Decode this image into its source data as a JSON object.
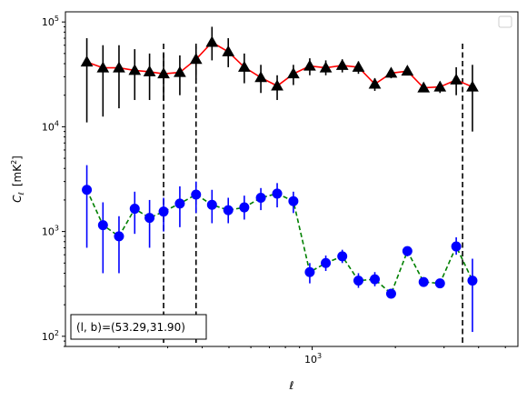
{
  "chart_data": {
    "type": "scatter",
    "xscale": "log",
    "yscale": "log",
    "xlim": [
      128,
      5550
    ],
    "ylim": [
      80,
      125000
    ],
    "x_tick_labels": [
      {
        "value": 1000,
        "label": "10^3"
      }
    ],
    "y_tick_labels": [
      {
        "value": 100,
        "label": "10^2"
      },
      {
        "value": 1000,
        "label": "10^3"
      },
      {
        "value": 10000,
        "label": "10^4"
      },
      {
        "value": 100000,
        "label": "10^5"
      }
    ],
    "xlabel": "ℓ",
    "ylabel_symbol": "C",
    "ylabel_subscript": "ℓ",
    "ylabel_unit_open": "[mK",
    "ylabel_unit_sup": "2",
    "ylabel_unit_close": "]",
    "annotation": "(l, b)=(53.29,31.90)",
    "legend": {
      "position": "top-right",
      "entries": []
    },
    "vlines": [
      {
        "x": 290,
        "style": "dashed"
      },
      {
        "x": 380,
        "style": "dashed"
      },
      {
        "x": 3500,
        "style": "dashed"
      }
    ],
    "series": [
      {
        "marker": "triangle",
        "marker_color": "#000000",
        "line_color": "#ff0000",
        "line_style": "solid",
        "points": [
          {
            "x": 153,
            "y": 41500,
            "ylo": 11000,
            "yhi": 70000
          },
          {
            "x": 175,
            "y": 36500,
            "ylo": 12500,
            "yhi": 60000
          },
          {
            "x": 200,
            "y": 36500,
            "ylo": 15000,
            "yhi": 60000
          },
          {
            "x": 228,
            "y": 34500,
            "ylo": 18000,
            "yhi": 55000
          },
          {
            "x": 258,
            "y": 33500,
            "ylo": 18000,
            "yhi": 50000
          },
          {
            "x": 290,
            "y": 32000,
            "ylo": 18000,
            "yhi": 50000
          },
          {
            "x": 332,
            "y": 33000,
            "ylo": 20000,
            "yhi": 48000
          },
          {
            "x": 380,
            "y": 44000,
            "ylo": 28000,
            "yhi": 59000
          },
          {
            "x": 434,
            "y": 64000,
            "ylo": 43000,
            "yhi": 90000
          },
          {
            "x": 497,
            "y": 52000,
            "ylo": 37000,
            "yhi": 70000
          },
          {
            "x": 568,
            "y": 37000,
            "ylo": 26000,
            "yhi": 50000
          },
          {
            "x": 652,
            "y": 29500,
            "ylo": 21000,
            "yhi": 39000
          },
          {
            "x": 747,
            "y": 24500,
            "ylo": 18000,
            "yhi": 31000
          },
          {
            "x": 855,
            "y": 32000,
            "ylo": 25000,
            "yhi": 39000
          },
          {
            "x": 980,
            "y": 38000,
            "ylo": 31000,
            "yhi": 45000
          },
          {
            "x": 1120,
            "y": 36500,
            "ylo": 31000,
            "yhi": 43000
          },
          {
            "x": 1285,
            "y": 38500,
            "ylo": 33000,
            "yhi": 44000
          },
          {
            "x": 1470,
            "y": 37000,
            "ylo": 32000,
            "yhi": 42000
          },
          {
            "x": 1685,
            "y": 25500,
            "ylo": 22000,
            "yhi": 29000
          },
          {
            "x": 1930,
            "y": 32500,
            "ylo": 29000,
            "yhi": 36000
          },
          {
            "x": 2210,
            "y": 34000,
            "ylo": 31000,
            "yhi": 37000
          },
          {
            "x": 2530,
            "y": 23500,
            "ylo": 21500,
            "yhi": 26000
          },
          {
            "x": 2900,
            "y": 24000,
            "ylo": 21000,
            "yhi": 27000
          },
          {
            "x": 3320,
            "y": 28000,
            "ylo": 20000,
            "yhi": 37000
          },
          {
            "x": 3800,
            "y": 24000,
            "ylo": 9000,
            "yhi": 39000
          }
        ]
      },
      {
        "marker": "circle",
        "marker_color": "#0000ff",
        "line_color": "#008000",
        "line_style": "dashed",
        "points": [
          {
            "x": 153,
            "y": 2500,
            "ylo": 700,
            "yhi": 4300
          },
          {
            "x": 175,
            "y": 1150,
            "ylo": 400,
            "yhi": 1900
          },
          {
            "x": 200,
            "y": 900,
            "ylo": 400,
            "yhi": 1400
          },
          {
            "x": 228,
            "y": 1650,
            "ylo": 950,
            "yhi": 2400
          },
          {
            "x": 258,
            "y": 1350,
            "ylo": 700,
            "yhi": 2000
          },
          {
            "x": 290,
            "y": 1550,
            "ylo": 1000,
            "yhi": 2100
          },
          {
            "x": 332,
            "y": 1850,
            "ylo": 1100,
            "yhi": 2700
          },
          {
            "x": 380,
            "y": 2250,
            "ylo": 1500,
            "yhi": 3000
          },
          {
            "x": 434,
            "y": 1800,
            "ylo": 1200,
            "yhi": 2500
          },
          {
            "x": 497,
            "y": 1600,
            "ylo": 1200,
            "yhi": 2100
          },
          {
            "x": 568,
            "y": 1700,
            "ylo": 1300,
            "yhi": 2200
          },
          {
            "x": 652,
            "y": 2100,
            "ylo": 1600,
            "yhi": 2600
          },
          {
            "x": 747,
            "y": 2300,
            "ylo": 1700,
            "yhi": 2900
          },
          {
            "x": 855,
            "y": 1950,
            "ylo": 1500,
            "yhi": 2400
          },
          {
            "x": 980,
            "y": 410,
            "ylo": 320,
            "yhi": 500
          },
          {
            "x": 1120,
            "y": 500,
            "ylo": 420,
            "yhi": 590
          },
          {
            "x": 1285,
            "y": 580,
            "ylo": 500,
            "yhi": 670
          },
          {
            "x": 1470,
            "y": 340,
            "ylo": 290,
            "yhi": 400
          },
          {
            "x": 1685,
            "y": 350,
            "ylo": 300,
            "yhi": 410
          },
          {
            "x": 1930,
            "y": 255,
            "ylo": 235,
            "yhi": 280
          },
          {
            "x": 2210,
            "y": 650,
            "ylo": 580,
            "yhi": 720
          },
          {
            "x": 2530,
            "y": 330,
            "ylo": 300,
            "yhi": 360
          },
          {
            "x": 2900,
            "y": 320,
            "ylo": 290,
            "yhi": 350
          },
          {
            "x": 3320,
            "y": 720,
            "ylo": 600,
            "yhi": 880
          },
          {
            "x": 3800,
            "y": 340,
            "ylo": 110,
            "yhi": 550
          }
        ]
      }
    ]
  }
}
